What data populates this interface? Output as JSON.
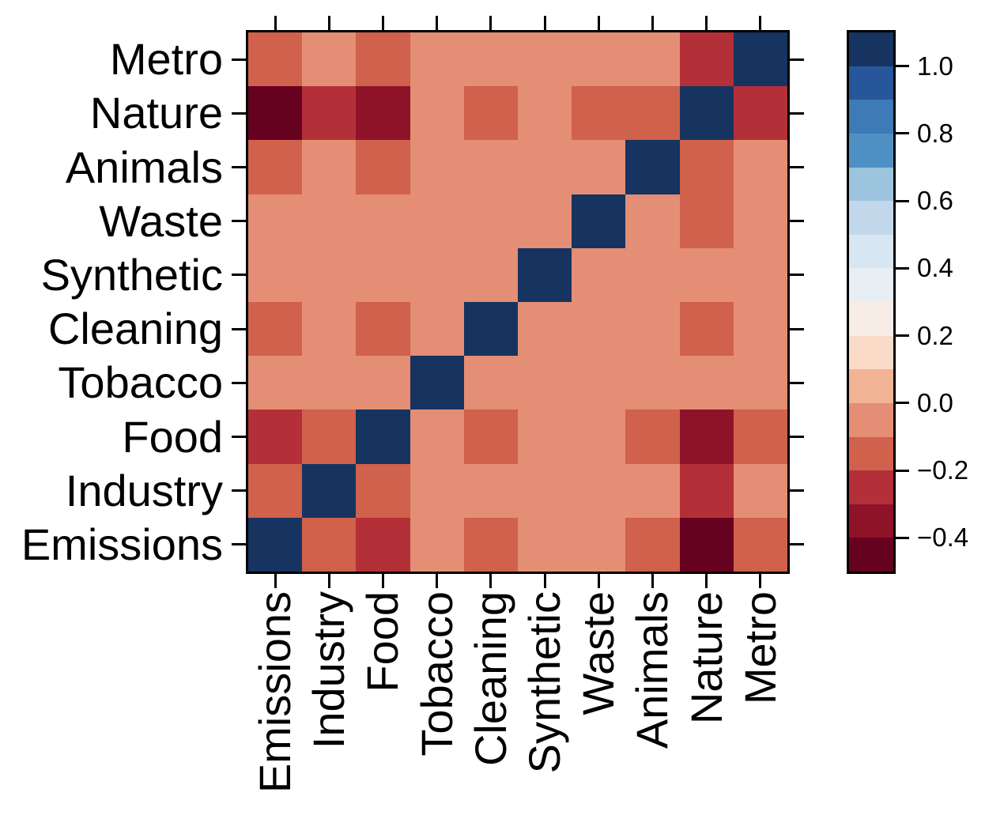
{
  "figure": {
    "background": "#ffffff",
    "axis_color": "#000000",
    "title": ""
  },
  "chart_data": {
    "type": "heatmap",
    "title": "",
    "xlabel": "",
    "ylabel": "",
    "grid": false,
    "legend_position": "right-colorbar",
    "col_labels_left_to_right": [
      "Emissions",
      "Industry",
      "Food",
      "Tobacco",
      "Cleaning",
      "Synthetic",
      "Waste",
      "Animals",
      "Nature",
      "Metro"
    ],
    "row_labels_top_to_bottom": [
      "Metro",
      "Nature",
      "Animals",
      "Waste",
      "Synthetic",
      "Cleaning",
      "Tobacco",
      "Food",
      "Industry",
      "Emissions"
    ],
    "matrix_rows_top_to_bottom": [
      [
        -0.15,
        -0.05,
        -0.15,
        -0.05,
        -0.05,
        -0.05,
        -0.05,
        -0.05,
        -0.25,
        1.0
      ],
      [
        -0.45,
        -0.25,
        -0.35,
        -0.05,
        -0.15,
        -0.05,
        -0.15,
        -0.15,
        1.0,
        -0.25
      ],
      [
        -0.15,
        -0.05,
        -0.15,
        -0.05,
        -0.05,
        -0.05,
        -0.05,
        1.0,
        -0.15,
        -0.05
      ],
      [
        -0.05,
        -0.05,
        -0.05,
        -0.05,
        -0.05,
        -0.05,
        1.0,
        -0.05,
        -0.15,
        -0.05
      ],
      [
        -0.05,
        -0.05,
        -0.05,
        -0.05,
        -0.05,
        1.0,
        -0.05,
        -0.05,
        -0.05,
        -0.05
      ],
      [
        -0.15,
        -0.05,
        -0.15,
        -0.05,
        1.0,
        -0.05,
        -0.05,
        -0.05,
        -0.15,
        -0.05
      ],
      [
        -0.05,
        -0.05,
        -0.05,
        1.0,
        -0.05,
        -0.05,
        -0.05,
        -0.05,
        -0.05,
        -0.05
      ],
      [
        -0.25,
        -0.15,
        1.0,
        -0.05,
        -0.15,
        -0.05,
        -0.05,
        -0.15,
        -0.35,
        -0.15
      ],
      [
        -0.15,
        1.0,
        -0.15,
        -0.05,
        -0.05,
        -0.05,
        -0.05,
        -0.05,
        -0.25,
        -0.05
      ],
      [
        1.0,
        -0.15,
        -0.25,
        -0.05,
        -0.15,
        -0.05,
        -0.05,
        -0.15,
        -0.45,
        -0.15
      ]
    ],
    "colorbar": {
      "range": [
        -0.5,
        1.1
      ],
      "band_step": 0.1,
      "band_colors_bottom_to_top": [
        "#670120",
        "#8E1329",
        "#B43038",
        "#D0614C",
        "#E48E75",
        "#F2B394",
        "#F9DBC8",
        "#F7ECE6",
        "#E7EEF4",
        "#D8E6F1",
        "#C2D8EA",
        "#9CC4DE",
        "#4E90C3",
        "#3D7AB6",
        "#27569B",
        "#17335F"
      ],
      "ticks": [
        {
          "label": "1.0",
          "value": 1.0
        },
        {
          "label": "0.8",
          "value": 0.8
        },
        {
          "label": "0.6",
          "value": 0.6
        },
        {
          "label": "0.4",
          "value": 0.4
        },
        {
          "label": "0.2",
          "value": 0.2
        },
        {
          "label": "0.0",
          "value": 0.0
        },
        {
          "label": "−0.2",
          "value": -0.2
        },
        {
          "label": "−0.4",
          "value": -0.4
        }
      ]
    }
  }
}
